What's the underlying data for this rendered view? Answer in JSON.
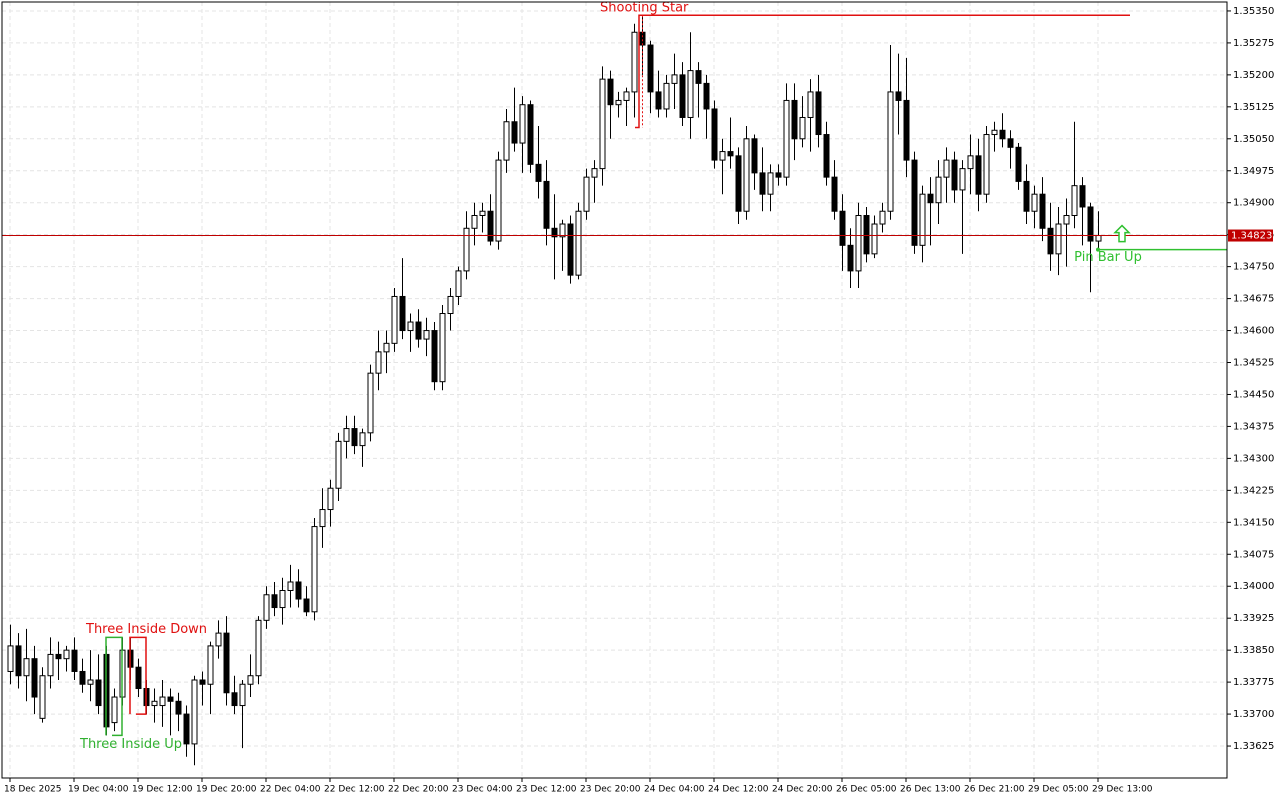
{
  "chart_data": {
    "type": "candlestick",
    "ylim": [
      1.3355,
      1.35371
    ],
    "yticks": [
      {
        "value": 1.3535,
        "label": "1.35350"
      },
      {
        "value": 1.35275,
        "label": "1.35275"
      },
      {
        "value": 1.352,
        "label": "1.35200"
      },
      {
        "value": 1.35125,
        "label": "1.35125"
      },
      {
        "value": 1.3505,
        "label": "1.35050"
      },
      {
        "value": 1.34975,
        "label": "1.34975"
      },
      {
        "value": 1.349,
        "label": "1.34900"
      },
      {
        "value": 1.34825,
        "label": "1.34825"
      },
      {
        "value": 1.3475,
        "label": "1.34750"
      },
      {
        "value": 1.34675,
        "label": "1.34675"
      },
      {
        "value": 1.346,
        "label": "1.34600"
      },
      {
        "value": 1.34525,
        "label": "1.34525"
      },
      {
        "value": 1.3445,
        "label": "1.34450"
      },
      {
        "value": 1.34375,
        "label": "1.34375"
      },
      {
        "value": 1.343,
        "label": "1.34300"
      },
      {
        "value": 1.34225,
        "label": "1.34225"
      },
      {
        "value": 1.3415,
        "label": "1.34150"
      },
      {
        "value": 1.34075,
        "label": "1.34075"
      },
      {
        "value": 1.34,
        "label": "1.34000"
      },
      {
        "value": 1.33925,
        "label": "1.33925"
      },
      {
        "value": 1.3385,
        "label": "1.33850"
      },
      {
        "value": 1.33775,
        "label": "1.33775"
      },
      {
        "value": 1.337,
        "label": "1.33700"
      },
      {
        "value": 1.33625,
        "label": "1.33625"
      }
    ],
    "grid": true,
    "up_color": "#ffffff",
    "down_color": "#000000",
    "current_price": 1.34823,
    "current_price_color": "#c00000",
    "categories": [
      "18 Dec 2025",
      null,
      null,
      null,
      null,
      null,
      null,
      null,
      "19 Dec 04:00",
      null,
      null,
      null,
      null,
      null,
      null,
      null,
      "19 Dec 12:00",
      null,
      null,
      null,
      null,
      null,
      null,
      null,
      "19 Dec 20:00",
      null,
      null,
      null,
      null,
      null,
      null,
      null,
      "22 Dec 04:00",
      null,
      null,
      null,
      null,
      null,
      null,
      null,
      "22 Dec 12:00",
      null,
      null,
      null,
      null,
      null,
      null,
      null,
      "22 Dec 20:00",
      null,
      null,
      null,
      null,
      null,
      null,
      null,
      "23 Dec 04:00",
      null,
      null,
      null,
      null,
      null,
      null,
      null,
      "23 Dec 12:00",
      null,
      null,
      null,
      null,
      null,
      null,
      null,
      "23 Dec 20:00",
      null,
      null,
      null,
      null,
      null,
      null,
      null,
      "24 Dec 04:00",
      null,
      null,
      null,
      null,
      null,
      null,
      null,
      "24 Dec 12:00",
      null,
      null,
      null,
      null,
      null,
      null,
      null,
      "24 Dec 20:00",
      null,
      null,
      null,
      null,
      null,
      null,
      null,
      "26 Dec 05:00",
      null,
      null,
      null,
      null,
      null,
      null,
      null,
      "26 Dec 13:00",
      null,
      null,
      null,
      null,
      null,
      null,
      null,
      "26 Dec 21:00",
      null,
      null,
      null,
      null,
      null,
      null,
      null,
      "29 Dec 05:00",
      null,
      null,
      null,
      null,
      null,
      null,
      null,
      "29 Dec 13:00",
      null
    ],
    "ohlc": [
      [
        1.338,
        1.3391,
        1.3377,
        1.3386
      ],
      [
        1.3386,
        1.3389,
        1.3376,
        1.3379
      ],
      [
        1.3379,
        1.339,
        1.3373,
        1.3383
      ],
      [
        1.3383,
        1.3386,
        1.337,
        1.3374
      ],
      [
        1.3369,
        1.3381,
        1.3368,
        1.3379
      ],
      [
        1.3379,
        1.3388,
        1.3376,
        1.3384
      ],
      [
        1.3384,
        1.3387,
        1.3378,
        1.3383
      ],
      [
        1.3383,
        1.3386,
        1.338,
        1.3385
      ],
      [
        1.3385,
        1.3388,
        1.3378,
        1.338
      ],
      [
        1.338,
        1.3383,
        1.3375,
        1.3377
      ],
      [
        1.3377,
        1.3385,
        1.3373,
        1.3378
      ],
      [
        1.3378,
        1.3384,
        1.337,
        1.3372
      ],
      [
        1.3384,
        1.3386,
        1.3365,
        1.3367
      ],
      [
        1.3368,
        1.3376,
        1.3366,
        1.3374
      ],
      [
        1.3374,
        1.3388,
        1.3372,
        1.3385
      ],
      [
        1.3385,
        1.3388,
        1.3378,
        1.3381
      ],
      [
        1.3381,
        1.3383,
        1.3374,
        1.3376
      ],
      [
        1.3376,
        1.3378,
        1.337,
        1.3372
      ],
      [
        1.3372,
        1.3376,
        1.3368,
        1.3373
      ],
      [
        1.3372,
        1.3378,
        1.3367,
        1.3374
      ],
      [
        1.3374,
        1.3376,
        1.3365,
        1.3373
      ],
      [
        1.3373,
        1.3375,
        1.3366,
        1.337
      ],
      [
        1.337,
        1.3372,
        1.336,
        1.3363
      ],
      [
        1.3363,
        1.3379,
        1.3358,
        1.3378
      ],
      [
        1.3378,
        1.338,
        1.3372,
        1.3377
      ],
      [
        1.3377,
        1.3387,
        1.337,
        1.3386
      ],
      [
        1.3386,
        1.3392,
        1.3383,
        1.3389
      ],
      [
        1.3389,
        1.3393,
        1.3372,
        1.3375
      ],
      [
        1.3375,
        1.3379,
        1.337,
        1.3372
      ],
      [
        1.3372,
        1.3378,
        1.3362,
        1.3377
      ],
      [
        1.3377,
        1.3384,
        1.3374,
        1.3379
      ],
      [
        1.3379,
        1.3393,
        1.3377,
        1.3392
      ],
      [
        1.3392,
        1.34,
        1.339,
        1.3398
      ],
      [
        1.3398,
        1.3401,
        1.3393,
        1.3395
      ],
      [
        1.3395,
        1.3402,
        1.3391,
        1.3399
      ],
      [
        1.3399,
        1.3405,
        1.3395,
        1.3401
      ],
      [
        1.3401,
        1.3404,
        1.3395,
        1.3397
      ],
      [
        1.3397,
        1.34,
        1.3393,
        1.3394
      ],
      [
        1.3394,
        1.3416,
        1.3392,
        1.3414
      ],
      [
        1.3414,
        1.3423,
        1.3409,
        1.3418
      ],
      [
        1.3418,
        1.3425,
        1.3414,
        1.3423
      ],
      [
        1.3423,
        1.3436,
        1.342,
        1.3434
      ],
      [
        1.3434,
        1.344,
        1.343,
        1.3437
      ],
      [
        1.3437,
        1.344,
        1.3431,
        1.3433
      ],
      [
        1.3433,
        1.3437,
        1.3428,
        1.3436
      ],
      [
        1.3436,
        1.3452,
        1.3434,
        1.345
      ],
      [
        1.345,
        1.346,
        1.3446,
        1.3455
      ],
      [
        1.3455,
        1.346,
        1.345,
        1.3457
      ],
      [
        1.3457,
        1.347,
        1.3455,
        1.3468
      ],
      [
        1.3468,
        1.3477,
        1.3458,
        1.346
      ],
      [
        1.346,
        1.3464,
        1.3455,
        1.3462
      ],
      [
        1.3462,
        1.3465,
        1.3456,
        1.3458
      ],
      [
        1.3458,
        1.3463,
        1.3454,
        1.346
      ],
      [
        1.346,
        1.3462,
        1.3446,
        1.3448
      ],
      [
        1.3448,
        1.3466,
        1.3446,
        1.3464
      ],
      [
        1.3464,
        1.347,
        1.346,
        1.3468
      ],
      [
        1.3468,
        1.3475,
        1.3466,
        1.3474
      ],
      [
        1.3474,
        1.3488,
        1.3472,
        1.3484
      ],
      [
        1.3484,
        1.349,
        1.348,
        1.3487
      ],
      [
        1.3487,
        1.349,
        1.3483,
        1.3488
      ],
      [
        1.3488,
        1.3492,
        1.348,
        1.3481
      ],
      [
        1.3481,
        1.3502,
        1.3479,
        1.35
      ],
      [
        1.35,
        1.3512,
        1.3497,
        1.3509
      ],
      [
        1.3509,
        1.3517,
        1.3502,
        1.3504
      ],
      [
        1.3504,
        1.3515,
        1.3497,
        1.3513
      ],
      [
        1.3513,
        1.3514,
        1.3497,
        1.3499
      ],
      [
        1.3499,
        1.3508,
        1.3491,
        1.3495
      ],
      [
        1.3495,
        1.35,
        1.348,
        1.3484
      ],
      [
        1.3484,
        1.3492,
        1.3472,
        1.3482
      ],
      [
        1.3482,
        1.3486,
        1.3474,
        1.3485
      ],
      [
        1.3485,
        1.3487,
        1.3471,
        1.3473
      ],
      [
        1.3473,
        1.349,
        1.3472,
        1.3488
      ],
      [
        1.3488,
        1.3498,
        1.3486,
        1.3496
      ],
      [
        1.3496,
        1.35,
        1.349,
        1.3498
      ],
      [
        1.3498,
        1.3522,
        1.3494,
        1.3519
      ],
      [
        1.3519,
        1.3521,
        1.3505,
        1.3513
      ],
      [
        1.3513,
        1.3516,
        1.351,
        1.3514
      ],
      [
        1.3514,
        1.3517,
        1.3508,
        1.3516
      ],
      [
        1.3516,
        1.3532,
        1.351,
        1.353
      ],
      [
        1.353,
        1.3534,
        1.352,
        1.3527
      ],
      [
        1.3527,
        1.3528,
        1.3511,
        1.3516
      ],
      [
        1.3516,
        1.3521,
        1.351,
        1.3512
      ],
      [
        1.3512,
        1.352,
        1.351,
        1.3518
      ],
      [
        1.3518,
        1.3525,
        1.3512,
        1.352
      ],
      [
        1.352,
        1.3523,
        1.3508,
        1.351
      ],
      [
        1.351,
        1.353,
        1.3505,
        1.3521
      ],
      [
        1.3521,
        1.3523,
        1.351,
        1.3518
      ],
      [
        1.3518,
        1.352,
        1.3505,
        1.3512
      ],
      [
        1.3512,
        1.3514,
        1.3498,
        1.35
      ],
      [
        1.35,
        1.3505,
        1.3492,
        1.3502
      ],
      [
        1.3502,
        1.351,
        1.3498,
        1.3501
      ],
      [
        1.3501,
        1.3503,
        1.3485,
        1.3488
      ],
      [
        1.3488,
        1.3508,
        1.3486,
        1.3505
      ],
      [
        1.3505,
        1.3506,
        1.3493,
        1.3497
      ],
      [
        1.3497,
        1.3503,
        1.3488,
        1.3492
      ],
      [
        1.3492,
        1.3499,
        1.3488,
        1.3497
      ],
      [
        1.3497,
        1.3499,
        1.3494,
        1.3496
      ],
      [
        1.3496,
        1.3518,
        1.3494,
        1.3514
      ],
      [
        1.3514,
        1.3518,
        1.35,
        1.3505
      ],
      [
        1.3505,
        1.3515,
        1.3503,
        1.351
      ],
      [
        1.351,
        1.3519,
        1.3502,
        1.3516
      ],
      [
        1.3516,
        1.352,
        1.3503,
        1.3506
      ],
      [
        1.3506,
        1.3509,
        1.3494,
        1.3496
      ],
      [
        1.3496,
        1.35,
        1.3486,
        1.3488
      ],
      [
        1.3488,
        1.3492,
        1.3474,
        1.348
      ],
      [
        1.348,
        1.3484,
        1.347,
        1.3474
      ],
      [
        1.3474,
        1.349,
        1.347,
        1.3487
      ],
      [
        1.3487,
        1.3489,
        1.3476,
        1.3478
      ],
      [
        1.3478,
        1.3487,
        1.3477,
        1.3485
      ],
      [
        1.3485,
        1.349,
        1.3483,
        1.3488
      ],
      [
        1.3488,
        1.3527,
        1.3486,
        1.3516
      ],
      [
        1.3516,
        1.3525,
        1.3506,
        1.3514
      ],
      [
        1.3514,
        1.3524,
        1.3496,
        1.35
      ],
      [
        1.35,
        1.3502,
        1.3478,
        1.348
      ],
      [
        1.348,
        1.3494,
        1.3476,
        1.3492
      ],
      [
        1.3492,
        1.3496,
        1.348,
        1.349
      ],
      [
        1.349,
        1.35,
        1.3485,
        1.3496
      ],
      [
        1.3496,
        1.3503,
        1.349,
        1.35
      ],
      [
        1.35,
        1.3502,
        1.349,
        1.3493
      ],
      [
        1.3493,
        1.35,
        1.3478,
        1.3498
      ],
      [
        1.3498,
        1.3506,
        1.3492,
        1.3501
      ],
      [
        1.3501,
        1.3505,
        1.3488,
        1.3492
      ],
      [
        1.3492,
        1.3508,
        1.349,
        1.3506
      ],
      [
        1.3506,
        1.3509,
        1.3502,
        1.3507
      ],
      [
        1.3507,
        1.3511,
        1.3503,
        1.3505
      ],
      [
        1.3505,
        1.3507,
        1.3498,
        1.3503
      ],
      [
        1.3503,
        1.3504,
        1.3493,
        1.3495
      ],
      [
        1.3495,
        1.3499,
        1.3485,
        1.3488
      ],
      [
        1.3488,
        1.3494,
        1.3484,
        1.3492
      ],
      [
        1.3492,
        1.3496,
        1.3481,
        1.3484
      ],
      [
        1.3484,
        1.349,
        1.3474,
        1.3478
      ],
      [
        1.3478,
        1.3489,
        1.3473,
        1.3485
      ],
      [
        1.3485,
        1.3491,
        1.3475,
        1.3487
      ],
      [
        1.3487,
        1.3509,
        1.3484,
        1.3494
      ],
      [
        1.3494,
        1.3496,
        1.348,
        1.3489
      ],
      [
        1.3489,
        1.349,
        1.3469,
        1.3481
      ],
      [
        1.3481,
        1.3488,
        1.3479,
        1.34823
      ]
    ],
    "annotations": [
      {
        "text": "Shooting Star",
        "color": "#e01010"
      },
      {
        "text": "Three Inside Down",
        "color": "#e01010"
      },
      {
        "text": "Three Inside Up",
        "color": "#30b030"
      },
      {
        "text": "Pin Bar Up",
        "color": "#30c030"
      }
    ]
  }
}
